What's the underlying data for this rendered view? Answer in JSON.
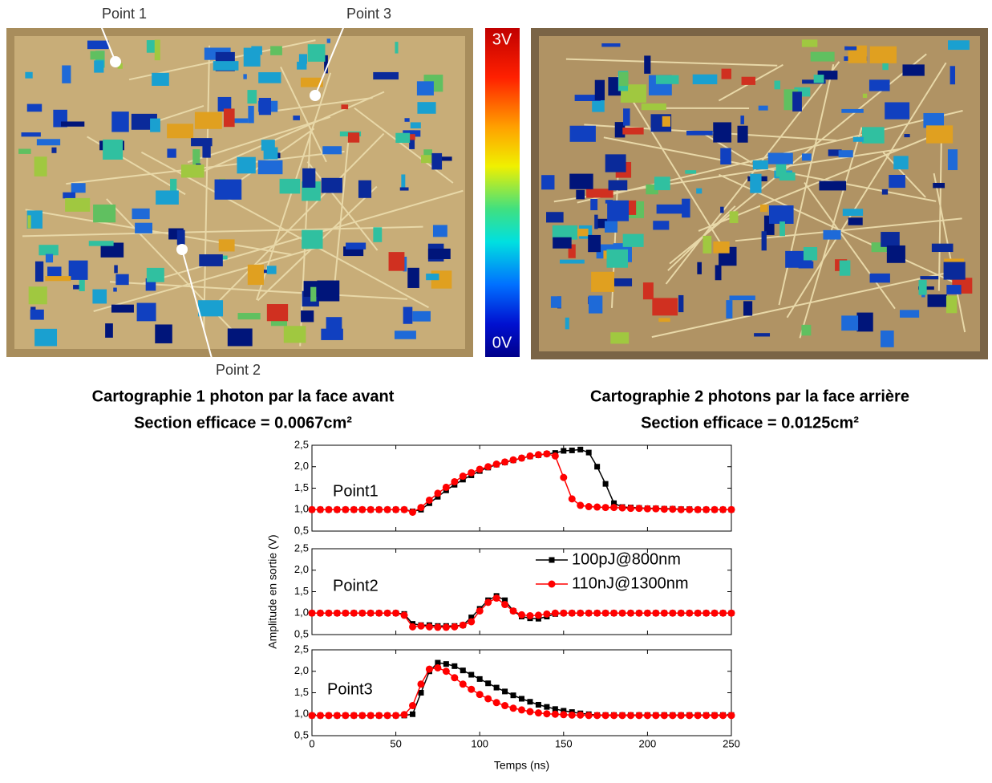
{
  "figure": {
    "point_labels": [
      "Point 1",
      "Point 2",
      "Point 3"
    ],
    "colorbar": {
      "max_label": "3V",
      "min_label": "0V"
    },
    "captions": [
      {
        "line1": "Cartographie 1 photon par la face avant",
        "line2": "Section efficace = 0.0067cm²"
      },
      {
        "line1": "Cartographie 2 photons par la face arrière",
        "line2": "Section efficace = 0.0125cm²"
      }
    ]
  },
  "chart_data": [
    {
      "type": "line",
      "annotation": "Point1",
      "x": [
        0,
        5,
        10,
        15,
        20,
        25,
        30,
        35,
        40,
        45,
        50,
        55,
        60,
        65,
        70,
        75,
        80,
        85,
        90,
        95,
        100,
        105,
        110,
        115,
        120,
        125,
        130,
        135,
        140,
        145,
        150,
        155,
        160,
        165,
        170,
        175,
        180,
        185,
        190,
        195,
        200,
        205,
        210,
        215,
        220,
        225,
        230,
        235,
        240,
        245,
        250
      ],
      "series": [
        {
          "color": "#000000",
          "marker": "square",
          "values": [
            1.0,
            1.0,
            1.0,
            1.0,
            1.0,
            1.0,
            1.0,
            1.0,
            1.0,
            1.0,
            1.0,
            1.0,
            0.96,
            1.0,
            1.15,
            1.3,
            1.45,
            1.58,
            1.7,
            1.8,
            1.9,
            1.98,
            2.05,
            2.1,
            2.15,
            2.2,
            2.24,
            2.27,
            2.3,
            2.32,
            2.37,
            2.38,
            2.4,
            2.33,
            2.0,
            1.6,
            1.15,
            1.06,
            1.05,
            1.04,
            1.03,
            1.03,
            1.02,
            1.02,
            1.01,
            1.01,
            1.0,
            1.0,
            1.0,
            1.0,
            1.0
          ]
        },
        {
          "color": "#ff0000",
          "marker": "circle",
          "values": [
            1.0,
            1.0,
            1.0,
            1.0,
            1.0,
            1.0,
            1.0,
            1.0,
            1.0,
            1.0,
            1.0,
            1.0,
            0.94,
            1.05,
            1.22,
            1.38,
            1.52,
            1.65,
            1.78,
            1.86,
            1.94,
            2.0,
            2.06,
            2.11,
            2.16,
            2.2,
            2.25,
            2.28,
            2.3,
            2.25,
            1.75,
            1.25,
            1.1,
            1.07,
            1.06,
            1.05,
            1.05,
            1.04,
            1.03,
            1.03,
            1.02,
            1.02,
            1.01,
            1.01,
            1.0,
            1.0,
            1.0,
            1.0,
            1.0,
            1.0,
            1.0
          ]
        }
      ],
      "xlim": [
        0,
        250
      ],
      "ylim": [
        0.5,
        2.5
      ],
      "xticks": [
        0,
        50,
        100,
        150,
        200,
        250
      ],
      "yticks": [
        {
          "value": 0.5,
          "label": "0,5"
        },
        {
          "value": 1.0,
          "label": "1,0"
        },
        {
          "value": 1.5,
          "label": "1,5"
        },
        {
          "value": 2.0,
          "label": "2,0"
        },
        {
          "value": 2.5,
          "label": "2,5"
        }
      ]
    },
    {
      "type": "line",
      "annotation": "Point2",
      "ylabel": "Amplitude en sortie (V)",
      "x": [
        0,
        5,
        10,
        15,
        20,
        25,
        30,
        35,
        40,
        45,
        50,
        55,
        60,
        65,
        70,
        75,
        80,
        85,
        90,
        95,
        100,
        105,
        110,
        115,
        120,
        125,
        130,
        135,
        140,
        145,
        150,
        155,
        160,
        165,
        170,
        175,
        180,
        185,
        190,
        195,
        200,
        205,
        210,
        215,
        220,
        225,
        230,
        235,
        240,
        245,
        250
      ],
      "series": [
        {
          "name": "100pJ@800nm",
          "color": "#000000",
          "marker": "square",
          "values": [
            1.0,
            1.0,
            1.0,
            1.0,
            1.0,
            1.0,
            1.0,
            1.0,
            1.0,
            1.0,
            1.0,
            0.98,
            0.75,
            0.72,
            0.72,
            0.7,
            0.7,
            0.7,
            0.72,
            0.9,
            1.1,
            1.3,
            1.4,
            1.3,
            1.05,
            0.92,
            0.88,
            0.87,
            0.92,
            0.98,
            1.0,
            1.0,
            1.0,
            1.0,
            1.0,
            1.0,
            1.0,
            1.0,
            1.0,
            1.0,
            1.0,
            1.0,
            1.0,
            1.0,
            1.0,
            1.0,
            1.0,
            1.0,
            1.0,
            1.0,
            1.0
          ]
        },
        {
          "name": "110nJ@1300nm",
          "color": "#ff0000",
          "marker": "circle",
          "values": [
            1.0,
            1.0,
            1.0,
            1.0,
            1.0,
            1.0,
            1.0,
            1.0,
            1.0,
            1.0,
            1.0,
            0.95,
            0.68,
            0.7,
            0.68,
            0.67,
            0.67,
            0.68,
            0.72,
            0.8,
            1.05,
            1.25,
            1.35,
            1.2,
            1.05,
            0.96,
            0.94,
            0.95,
            0.98,
            1.0,
            1.0,
            1.0,
            1.0,
            1.0,
            1.0,
            1.0,
            1.0,
            1.0,
            1.0,
            1.0,
            1.0,
            1.0,
            1.0,
            1.0,
            1.0,
            1.0,
            1.0,
            1.0,
            1.0,
            1.0,
            1.0
          ]
        }
      ],
      "xlim": [
        0,
        250
      ],
      "ylim": [
        0.5,
        2.5
      ],
      "xticks": [
        0,
        50,
        100,
        150,
        200,
        250
      ],
      "yticks": [
        {
          "value": 0.5,
          "label": "0,5"
        },
        {
          "value": 1.0,
          "label": "1,0"
        },
        {
          "value": 1.5,
          "label": "1,5"
        },
        {
          "value": 2.0,
          "label": "2,0"
        },
        {
          "value": 2.5,
          "label": "2,5"
        }
      ]
    },
    {
      "type": "line",
      "annotation": "Point3",
      "xlabel": "Temps (ns)",
      "x": [
        0,
        5,
        10,
        15,
        20,
        25,
        30,
        35,
        40,
        45,
        50,
        55,
        60,
        65,
        70,
        75,
        80,
        85,
        90,
        95,
        100,
        105,
        110,
        115,
        120,
        125,
        130,
        135,
        140,
        145,
        150,
        155,
        160,
        165,
        170,
        175,
        180,
        185,
        190,
        195,
        200,
        205,
        210,
        215,
        220,
        225,
        230,
        235,
        240,
        245,
        250
      ],
      "series": [
        {
          "color": "#000000",
          "marker": "square",
          "values": [
            0.97,
            0.97,
            0.97,
            0.97,
            0.97,
            0.97,
            0.97,
            0.97,
            0.97,
            0.97,
            0.97,
            0.97,
            1.0,
            1.5,
            2.0,
            2.2,
            2.17,
            2.12,
            2.02,
            1.92,
            1.82,
            1.72,
            1.62,
            1.53,
            1.44,
            1.36,
            1.29,
            1.22,
            1.17,
            1.12,
            1.08,
            1.05,
            1.02,
            1.0,
            0.98,
            0.98,
            0.98,
            0.98,
            0.98,
            0.98,
            0.98,
            0.98,
            0.98,
            0.98,
            0.98,
            0.98,
            0.98,
            0.98,
            0.98,
            0.98,
            0.98
          ]
        },
        {
          "color": "#ff0000",
          "marker": "circle",
          "values": [
            0.97,
            0.97,
            0.97,
            0.97,
            0.97,
            0.97,
            0.97,
            0.97,
            0.97,
            0.97,
            0.97,
            0.99,
            1.2,
            1.7,
            2.05,
            2.08,
            2.0,
            1.85,
            1.7,
            1.58,
            1.46,
            1.36,
            1.27,
            1.2,
            1.14,
            1.1,
            1.06,
            1.03,
            1.01,
            1.0,
            0.99,
            0.98,
            0.98,
            0.97,
            0.97,
            0.97,
            0.97,
            0.97,
            0.97,
            0.97,
            0.97,
            0.97,
            0.97,
            0.97,
            0.97,
            0.97,
            0.97,
            0.97,
            0.97,
            0.97,
            0.97
          ]
        }
      ],
      "xlim": [
        0,
        250
      ],
      "ylim": [
        0.5,
        2.5
      ],
      "xticks": [
        0,
        50,
        100,
        150,
        200,
        250
      ],
      "yticks": [
        {
          "value": 0.5,
          "label": "0,5"
        },
        {
          "value": 1.0,
          "label": "1,0"
        },
        {
          "value": 1.5,
          "label": "1,5"
        },
        {
          "value": 2.0,
          "label": "2,0"
        },
        {
          "value": 2.5,
          "label": "2,5"
        }
      ]
    }
  ]
}
